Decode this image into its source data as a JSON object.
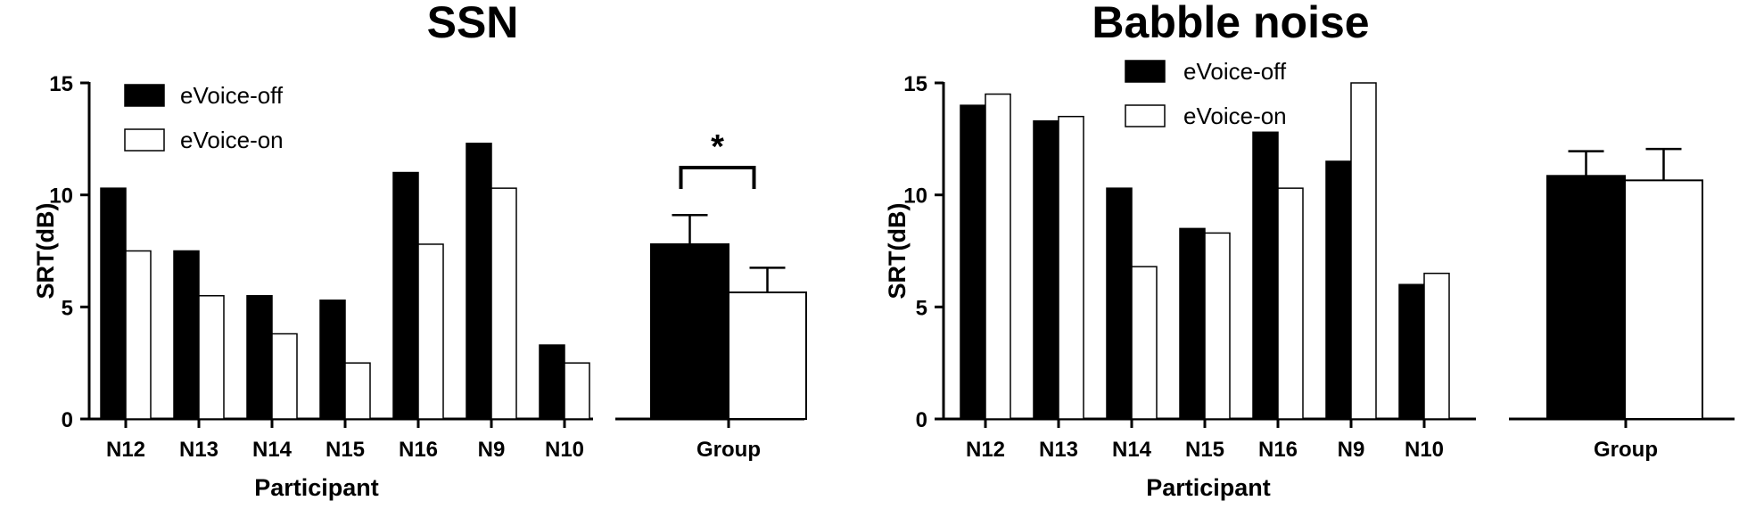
{
  "chart_data": [
    {
      "type": "bar",
      "title": "SSN",
      "xlabel": "Participant",
      "ylabel": "SRT(dB)",
      "ylim": [
        0,
        15
      ],
      "yticks": [
        0,
        5,
        10,
        15
      ],
      "categories": [
        "N12",
        "N13",
        "N14",
        "N15",
        "N16",
        "N9",
        "N10"
      ],
      "series": [
        {
          "name": "eVoice-off",
          "color": "#000000",
          "values": [
            10.3,
            7.5,
            5.5,
            5.3,
            11.0,
            12.3,
            3.3
          ]
        },
        {
          "name": "eVoice-on",
          "color": "#ffffff",
          "values": [
            7.5,
            5.5,
            3.8,
            2.5,
            7.8,
            10.3,
            2.5
          ]
        }
      ],
      "group": {
        "label": "Group",
        "means": [
          7.8,
          5.65
        ],
        "errors": [
          1.3,
          1.1
        ],
        "significance": "*"
      },
      "legend_position": "top-left",
      "grid": false
    },
    {
      "type": "bar",
      "title": "Babble noise",
      "xlabel": "Participant",
      "ylabel": "SRT(dB)",
      "ylim": [
        0,
        15
      ],
      "yticks": [
        0,
        5,
        10,
        15
      ],
      "categories": [
        "N12",
        "N13",
        "N14",
        "N15",
        "N16",
        "N9",
        "N10"
      ],
      "series": [
        {
          "name": "eVoice-off",
          "color": "#000000",
          "values": [
            14.0,
            13.3,
            10.3,
            8.5,
            12.8,
            11.5,
            6.0
          ]
        },
        {
          "name": "eVoice-on",
          "color": "#ffffff",
          "values": [
            14.5,
            13.5,
            6.8,
            8.3,
            10.3,
            15.0,
            6.5
          ]
        }
      ],
      "group": {
        "label": "Group",
        "means": [
          10.85,
          10.65
        ],
        "errors": [
          1.1,
          1.4
        ],
        "significance": ""
      },
      "legend_position": "top-left",
      "grid": false
    }
  ]
}
